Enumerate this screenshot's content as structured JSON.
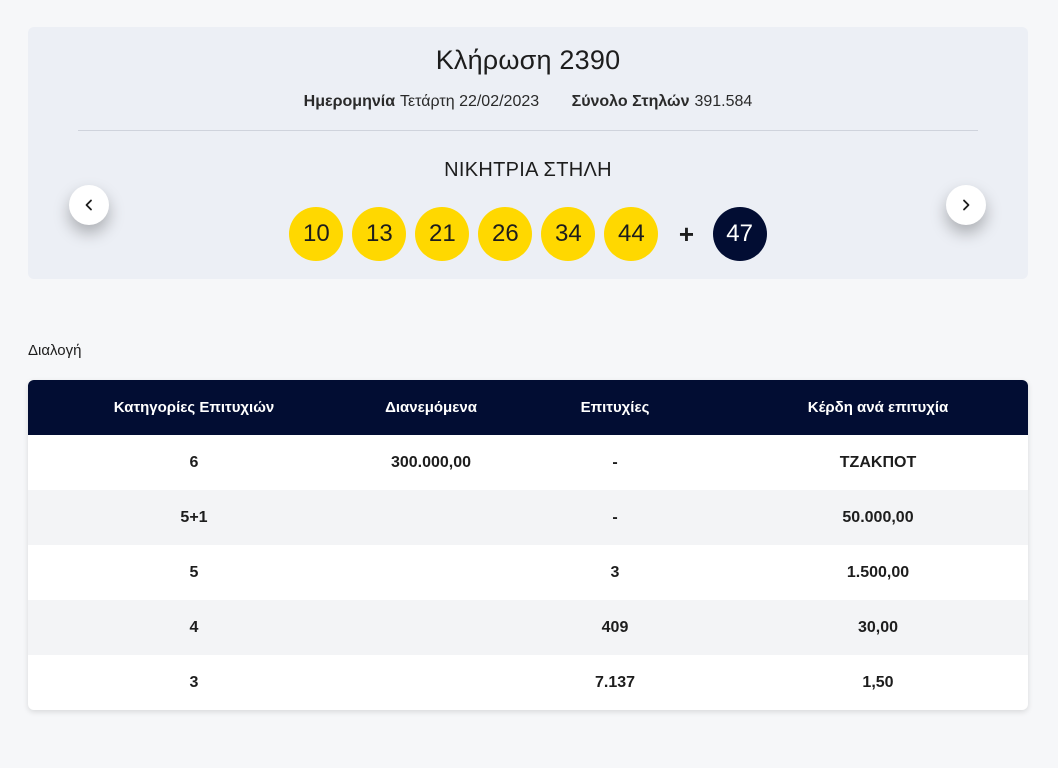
{
  "draw": {
    "title": "Κλήρωση 2390",
    "date_label": "Ημερομηνία",
    "date_value": "Τετάρτη 22/02/2023",
    "columns_label": "Σύνολο Στηλών",
    "columns_value": "391.584",
    "winning_label": "ΝΙΚΗΤΡΙΑ ΣΤΗΛΗ",
    "numbers": [
      "10",
      "13",
      "21",
      "26",
      "34",
      "44"
    ],
    "plus": "+",
    "bonus": "47",
    "colors": {
      "ball": "#ffd800",
      "bonus": "#020d33"
    }
  },
  "nav": {
    "prev_icon": "chevron-left-icon",
    "next_icon": "chevron-right-icon"
  },
  "section_label": "Διαλογή",
  "table": {
    "headers": [
      "Κατηγορίες Επιτυχιών",
      "Διανεμόμενα",
      "Επιτυχίες",
      "Κέρδη ανά επιτυχία"
    ],
    "rows": [
      [
        "6",
        "300.000,00",
        "-",
        "ΤΖΑΚΠΟΤ"
      ],
      [
        "5+1",
        "",
        "-",
        "50.000,00"
      ],
      [
        "5",
        "",
        "3",
        "1.500,00"
      ],
      [
        "4",
        "",
        "409",
        "30,00"
      ],
      [
        "3",
        "",
        "7.137",
        "1,50"
      ]
    ],
    "header_color": "#020d33"
  }
}
